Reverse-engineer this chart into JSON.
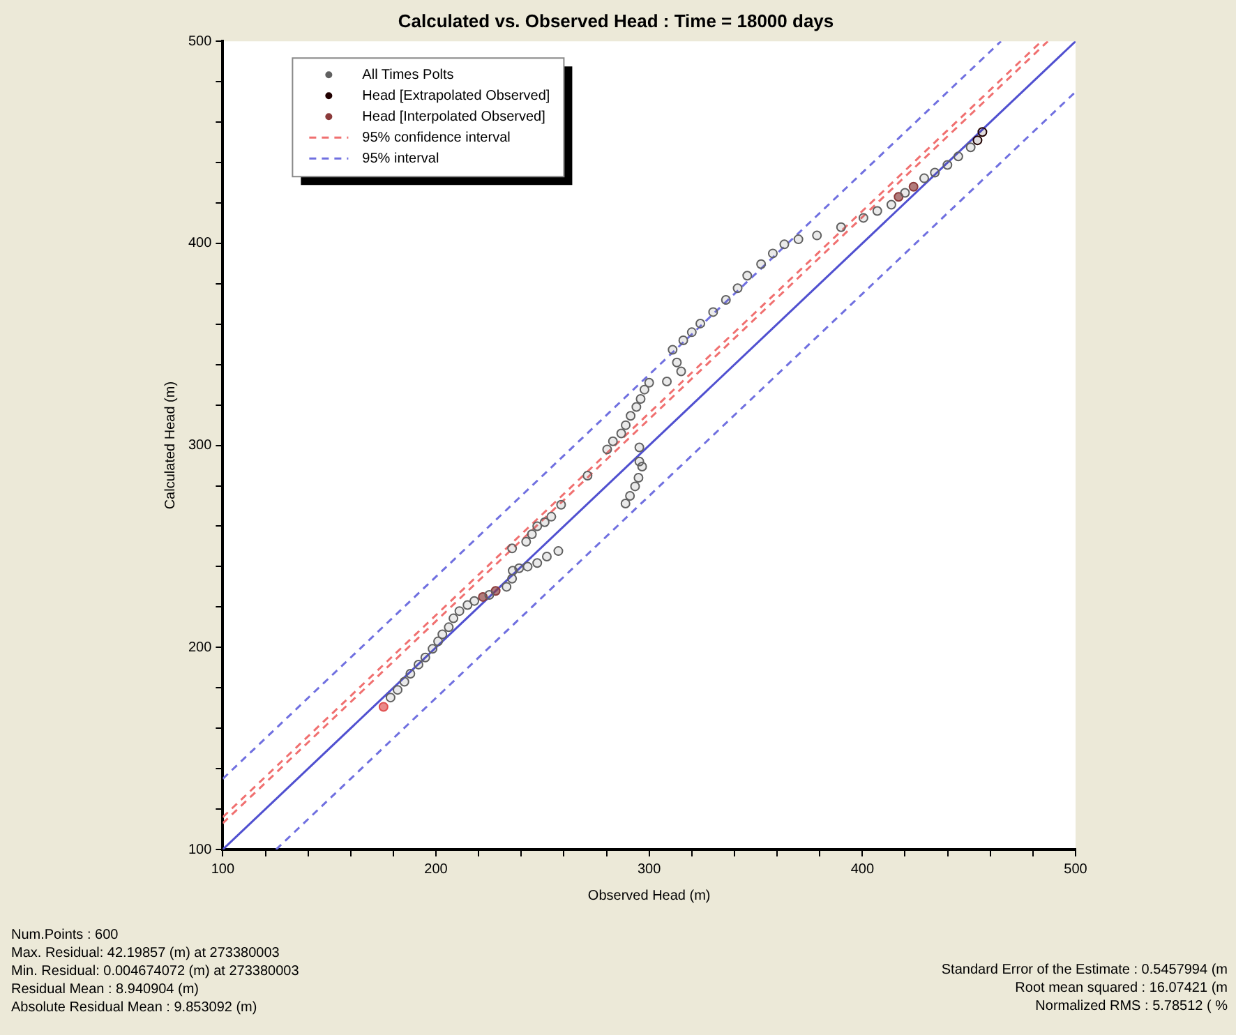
{
  "chart_data": {
    "type": "scatter",
    "title": "Calculated vs. Observed Head : Time = 18000 days",
    "xlabel": "Observed Head (m)",
    "ylabel": "Calculated Head (m)",
    "xlim": [
      100,
      500
    ],
    "ylim": [
      100,
      500
    ],
    "xticks": [
      100,
      {
        "value": 120,
        "label": null
      },
      {
        "value": 140,
        "label": null
      },
      {
        "value": 160,
        "label": null
      },
      {
        "value": 180,
        "label": null
      },
      200,
      {
        "value": 220,
        "label": null
      },
      {
        "value": 240,
        "label": null
      },
      {
        "value": 260,
        "label": null
      },
      {
        "value": 280,
        "label": null
      },
      300,
      {
        "value": 320,
        "label": null
      },
      {
        "value": 340,
        "label": null
      },
      {
        "value": 360,
        "label": null
      },
      {
        "value": 380,
        "label": null
      },
      400,
      {
        "value": 420,
        "label": null
      },
      {
        "value": 440,
        "label": null
      },
      {
        "value": 460,
        "label": null
      },
      {
        "value": 480,
        "label": null
      },
      500
    ],
    "yticks": [
      100,
      {
        "value": 120,
        "label": null
      },
      {
        "value": 140,
        "label": null
      },
      {
        "value": 160,
        "label": null
      },
      {
        "value": 180,
        "label": null
      },
      200,
      {
        "value": 220,
        "label": null
      },
      {
        "value": 240,
        "label": null
      },
      {
        "value": 260,
        "label": null
      },
      {
        "value": 280,
        "label": null
      },
      300,
      {
        "value": 320,
        "label": null
      },
      {
        "value": 340,
        "label": null
      },
      {
        "value": 360,
        "label": null
      },
      {
        "value": 380,
        "label": null
      },
      400,
      {
        "value": 420,
        "label": null
      },
      {
        "value": 440,
        "label": null
      },
      {
        "value": 460,
        "label": null
      },
      {
        "value": 480,
        "label": null
      },
      500
    ],
    "grid": false,
    "legend": "top left",
    "marker": "circle",
    "series": [
      {
        "name": "All Times Polts",
        "type": "scatter",
        "color": "#606060",
        "x": [
          178.7,
          182,
          185.2,
          188,
          191.8,
          195,
          198.4,
          201,
          203,
          206,
          208.2,
          211,
          214.8,
          218,
          225,
          233.1,
          235.7,
          236,
          239,
          243,
          247.5,
          252,
          257.4,
          235.7,
          242.3,
          245,
          247.5,
          251,
          254.1,
          258.7,
          271.1,
          288.9,
          291,
          293.4,
          295,
          296.7,
          295.4,
          295.4,
          280.3,
          283,
          286.9,
          289,
          291.3,
          294,
          296,
          297.8,
          300,
          308.3,
          315,
          313,
          311,
          316,
          320,
          324,
          330,
          336,
          341.5,
          346,
          352.5,
          358,
          363.4,
          370,
          378.7,
          390,
          400.5,
          407,
          413.6,
          420,
          429,
          434,
          439.9,
          445,
          450.8
        ],
        "values": [
          175.2,
          179,
          183,
          187,
          191.5,
          195,
          199.3,
          203,
          206.5,
          210,
          214.4,
          218,
          221,
          223,
          226,
          230,
          234,
          238,
          239.2,
          240,
          241.8,
          245,
          247.7,
          249,
          252.3,
          256,
          260,
          262,
          264.7,
          270.6,
          285,
          271.2,
          275,
          279.7,
          284,
          289.5,
          292,
          299,
          298,
          302,
          305.9,
          310,
          314.6,
          319,
          323,
          327.6,
          331,
          331.6,
          336.6,
          341,
          347.3,
          352,
          356,
          360.3,
          366,
          372,
          377.8,
          384,
          389.7,
          395,
          399.5,
          402,
          403.9,
          408,
          412.6,
          416,
          419.1,
          425,
          432.2,
          435,
          438.8,
          443,
          447.5
        ]
      },
      {
        "name": "Head [Extrapolated Observed]",
        "type": "scatter",
        "color": "#200000",
        "x": [
          454,
          456.3
        ],
        "values": [
          451,
          455.1
        ]
      },
      {
        "name": "Head [Interpolated Observed]",
        "type": "scatter",
        "color": "#8b3a3a",
        "colors": [
          "#e05050",
          "#8b3a3a",
          "#8b3a3a",
          "#8b3a3a",
          "#8b3a3a"
        ],
        "x": [
          175.4,
          222,
          228,
          417,
          424
        ],
        "values": [
          170.6,
          225,
          228,
          423,
          428
        ]
      },
      {
        "name": "95% confidence interval",
        "type": "line",
        "marker": "none",
        "line_style": "dashed",
        "color": "#f07070",
        "x": [
          100,
          487
        ],
        "values": [
          113,
          500
        ]
      },
      {
        "type": "line",
        "marker": "none",
        "line_style": "dashed",
        "color": "#f07070",
        "x": [
          100,
          484
        ],
        "values": [
          116,
          500
        ]
      },
      {
        "name": "95% interval",
        "type": "line",
        "marker": "none",
        "line_style": "dashed",
        "color": "#7070e0",
        "x": [
          100,
          465
        ],
        "values": [
          135,
          500
        ]
      },
      {
        "type": "line",
        "marker": "none",
        "line_style": "dashed",
        "color": "#7070e0",
        "x": [
          125,
          500
        ],
        "values": [
          100,
          475
        ]
      },
      {
        "type": "line",
        "marker": "none",
        "line_style": "solid",
        "color": "#5050d0",
        "x": [
          100,
          500
        ],
        "values": [
          100,
          500
        ]
      }
    ],
    "annotations": [
      "Num.Points : 600",
      "Max. Residual: 42.19857 (m) at 273380003",
      "Min. Residual: 0.004674072 (m) at 273380003",
      "Residual Mean : 8.940904 (m)",
      "Absolute Residual Mean : 9.853092 (m)",
      "Standard Error of the Estimate : 0.5457994 (m",
      "Root mean squared : 16.07421 (m",
      "Normalized RMS : 5.78512 ( %"
    ]
  }
}
